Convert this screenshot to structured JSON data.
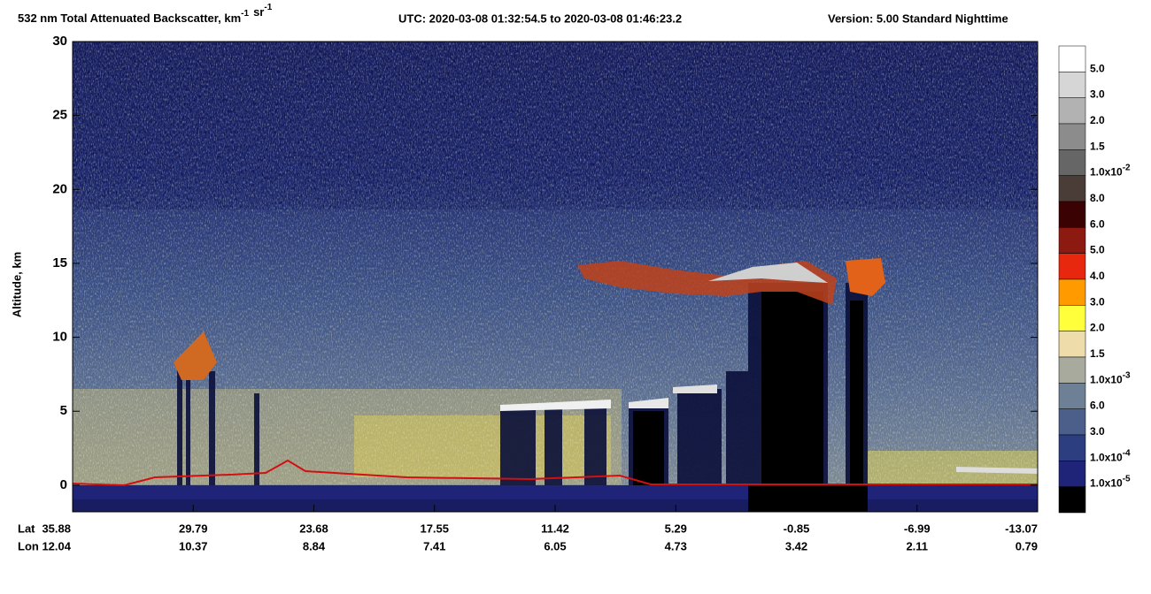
{
  "chart_data": {
    "type": "curtain",
    "title_parts": [
      {
        "text": "532 nm Total Attenuated Backscatter, km",
        "sup": "-1"
      },
      {
        "text": "sr",
        "sup": "-1"
      }
    ],
    "utc": "UTC:  2020-03-08 01:32:54.5  to  2020-03-08 01:46:23.2",
    "version": "Version: 5.00  Standard  Nighttime",
    "ylabel": "Altitude, km",
    "ylim": [
      -1.8,
      30
    ],
    "yticks": [
      0,
      5,
      10,
      15,
      20,
      25,
      30
    ],
    "x_rows": [
      {
        "name": "Lat",
        "ticks": [
          "35.88",
          "29.79",
          "23.68",
          "17.55",
          "11.42",
          "5.29",
          "-0.85",
          "-6.99",
          "-13.07"
        ]
      },
      {
        "name": "Lon",
        "ticks": [
          "12.04",
          "10.37",
          "8.84",
          "7.41",
          "6.05",
          "4.73",
          "3.42",
          "2.11",
          "0.79"
        ]
      }
    ],
    "colorbar": {
      "colors": [
        "#ffffff",
        "#d6d6d6",
        "#b2b2b2",
        "#8c8c8c",
        "#666666",
        "#4a3d38",
        "#3a0202",
        "#8c1a10",
        "#e8280e",
        "#ff9a00",
        "#ffff3c",
        "#eedcaa",
        "#a8aa9e",
        "#6e8095",
        "#4b5f8a",
        "#2c3e80",
        "#1f2478",
        "#000000"
      ],
      "labels": [
        {
          "text": "5.0"
        },
        {
          "text": "3.0"
        },
        {
          "text": "2.0"
        },
        {
          "text": "1.5"
        },
        {
          "text": "1.0x10",
          "sup": "-2"
        },
        {
          "text": "8.0"
        },
        {
          "text": "6.0"
        },
        {
          "text": "5.0"
        },
        {
          "text": "4.0"
        },
        {
          "text": "3.0"
        },
        {
          "text": "2.0"
        },
        {
          "text": "1.5"
        },
        {
          "text": "1.0x10",
          "sup": "-3"
        },
        {
          "text": "6.0"
        },
        {
          "text": "3.0"
        },
        {
          "text": "1.0x10",
          "sup": "-4"
        },
        {
          "text": "1.0x10",
          "sup": "-5"
        }
      ]
    }
  }
}
